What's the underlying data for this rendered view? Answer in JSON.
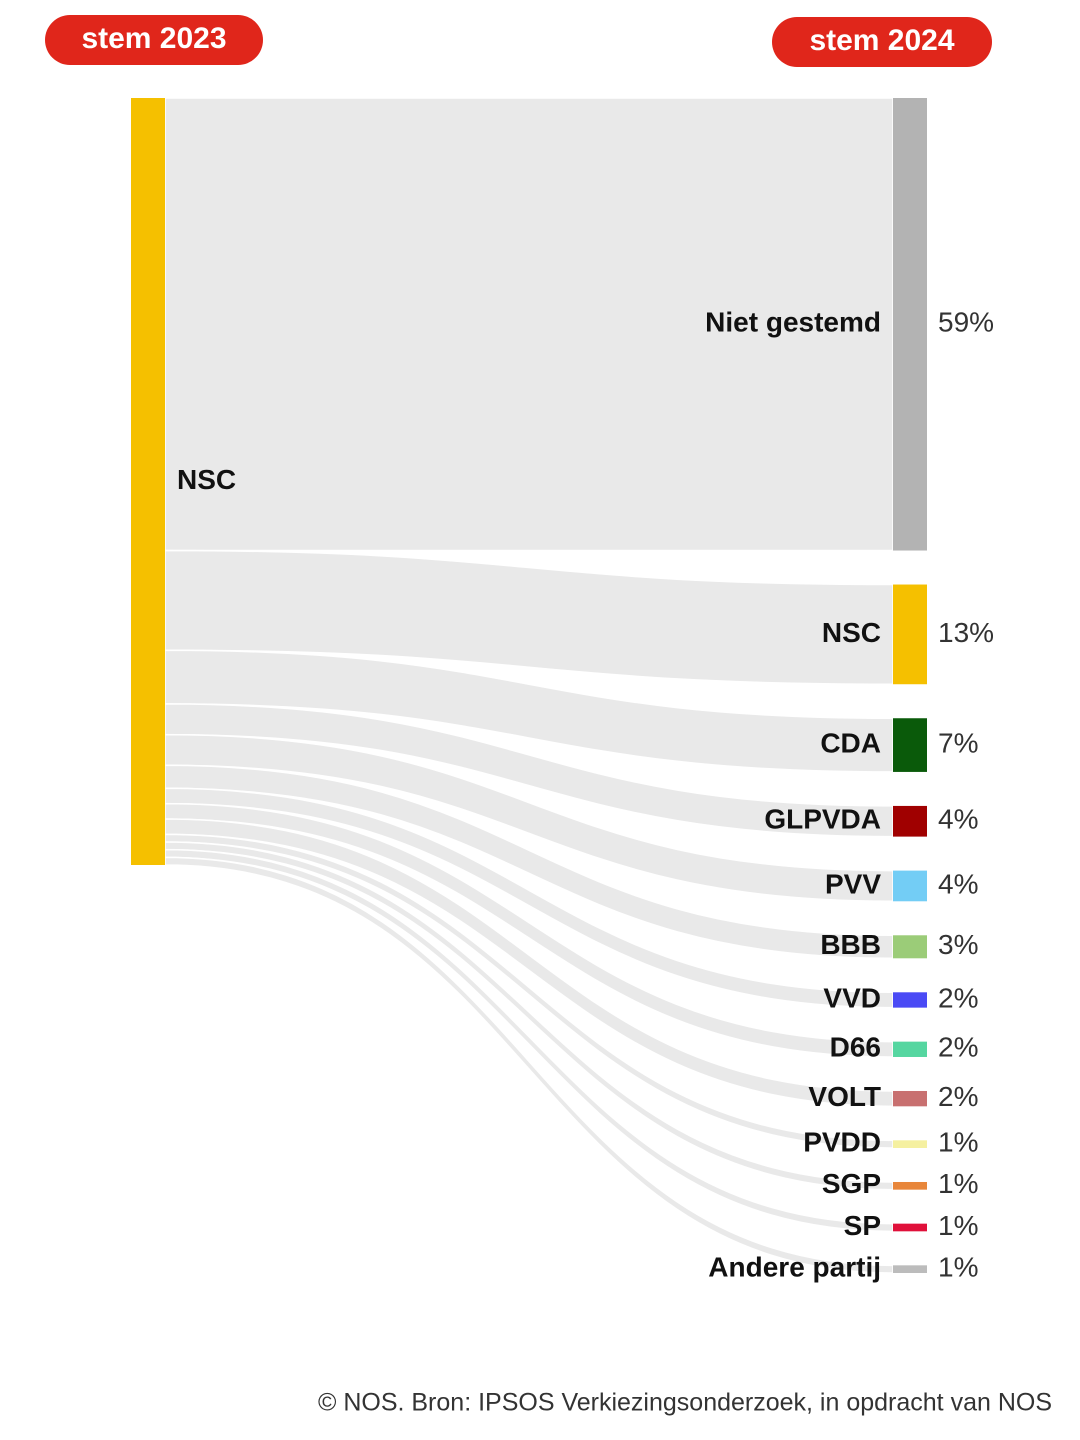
{
  "chart_data": {
    "type": "sankey",
    "source_title": "stem 2023",
    "target_title": "stem 2024",
    "source": "NSC",
    "source_color": "#f5c000",
    "categories": [
      "Niet gestemd",
      "NSC",
      "CDA",
      "GLPVDA",
      "PVV",
      "BBB",
      "VVD",
      "D66",
      "VOLT",
      "PVDD",
      "SGP",
      "SP",
      "Andere partij"
    ],
    "values": [
      59,
      13,
      7,
      4,
      4,
      3,
      2,
      2,
      2,
      1,
      1,
      1,
      1
    ],
    "value_labels": [
      "59%",
      "13%",
      "7%",
      "4%",
      "4%",
      "3%",
      "2%",
      "2%",
      "2%",
      "1%",
      "1%",
      "1%",
      "1%"
    ],
    "colors": [
      "#b3b3b3",
      "#f5c000",
      "#0a5a0a",
      "#a00000",
      "#73cdf5",
      "#9bcc78",
      "#4a4af5",
      "#55d6a0",
      "#c87070",
      "#f5f0a0",
      "#e8863a",
      "#e0103a",
      "#bcbcbc"
    ],
    "credit": "© NOS. Bron: IPSOS Verkiezingsonderzoek, in opdracht van NOS"
  }
}
